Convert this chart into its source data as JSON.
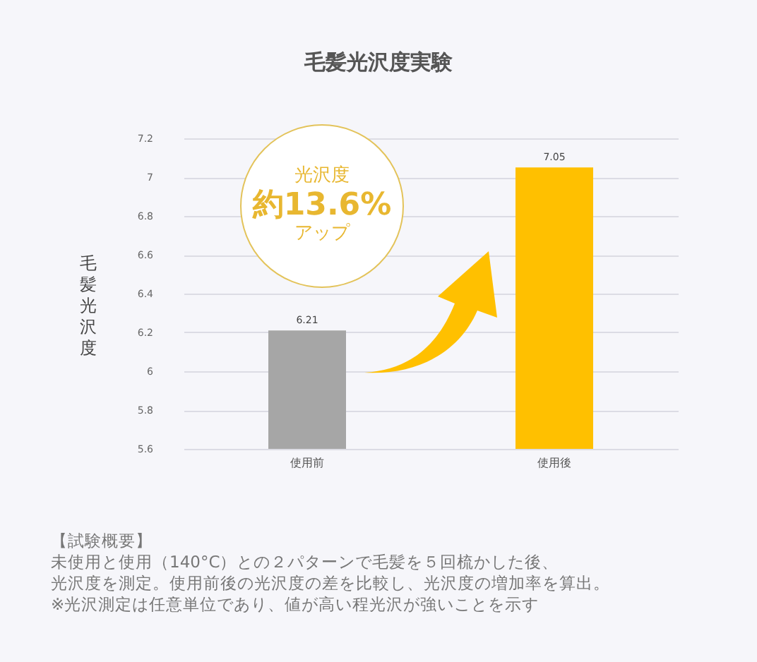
{
  "chart_data": {
    "type": "bar",
    "title": "毛髪光沢度実験",
    "ylabel": "毛髪光沢度",
    "categories": [
      "使用前",
      "使用後"
    ],
    "values": [
      6.21,
      7.05
    ],
    "colors": [
      "#a6a6a6",
      "#ffc000"
    ],
    "ylim": [
      5.6,
      7.2
    ],
    "yticks": [
      5.6,
      5.8,
      6,
      6.2,
      6.4,
      6.6,
      6.8,
      7,
      7.2
    ],
    "grid": "y",
    "data_labels": true,
    "annotations": [
      "光沢度",
      "約13.6%",
      "アップ",
      "【試験概要】",
      "未使用と使用（140°C）との２パターンで毛髪を５回梳かした後、",
      "光沢度を測定。使用前後の光沢度の差を比較し、光沢度の増加率を算出。",
      "※光沢測定は任意単位であり、値が高い程光沢が強いことを示す"
    ]
  }
}
